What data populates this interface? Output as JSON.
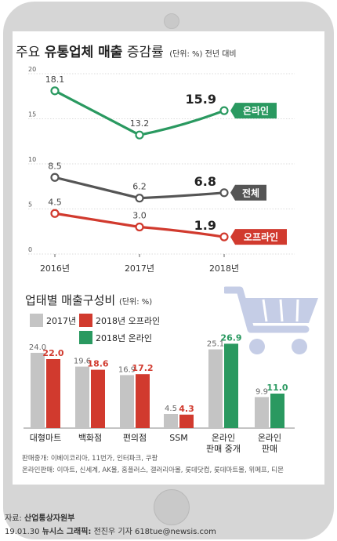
{
  "title": {
    "prefix": "주요",
    "bold": "유통업체 매출",
    "rest": "증감률",
    "unit": "(단위: %) 전년 대비"
  },
  "line_chart": {
    "type": "line",
    "x": [
      "2016년",
      "2017년",
      "2018년"
    ],
    "yticks": [
      0,
      5,
      10,
      15,
      20
    ],
    "ylim": [
      0,
      20
    ],
    "series": [
      {
        "name": "온라인",
        "values": [
          18.1,
          13.2,
          15.9
        ],
        "labels": [
          "18.1",
          "13.2",
          "15.9"
        ],
        "color": "#2a9960"
      },
      {
        "name": "전체",
        "values": [
          8.5,
          6.2,
          6.8
        ],
        "labels": [
          "8.5",
          "6.2",
          "6.8"
        ],
        "color": "#555555"
      },
      {
        "name": "오프라인",
        "values": [
          4.5,
          3.0,
          1.9
        ],
        "labels": [
          "4.5",
          "3.0",
          "1.9"
        ],
        "color": "#d13a2e"
      }
    ],
    "pct": "%"
  },
  "bar_title": {
    "main": "업태별 매출구성비",
    "unit": "(단위: %)"
  },
  "chart_data": {
    "type": "bar",
    "categories": [
      "대형마트",
      "백화점",
      "편의점",
      "SSM",
      "온라인 판매 중개",
      "온라인 판매"
    ],
    "category_lines": [
      [
        "대형마트"
      ],
      [
        "백화점"
      ],
      [
        "편의점"
      ],
      [
        "SSM"
      ],
      [
        "온라인",
        "판매 중개"
      ],
      [
        "온라인",
        "판매"
      ]
    ],
    "series": [
      {
        "name": "2017년",
        "values": [
          24.0,
          19.6,
          16.9,
          4.5,
          25.1,
          9.9
        ],
        "labels": [
          "24.0",
          "19.6",
          "16.9",
          "4.5",
          "25.1",
          "9.9"
        ],
        "color": "#c4c4c4"
      },
      {
        "name": "2018년 오프라인",
        "values": [
          22.0,
          18.6,
          17.2,
          4.3,
          null,
          null
        ],
        "labels": [
          "22.0",
          "18.6",
          "17.2",
          "4.3",
          null,
          null
        ],
        "color": "#d13a2e"
      },
      {
        "name": "2018년 온라인",
        "values": [
          null,
          null,
          null,
          null,
          26.9,
          11.0
        ],
        "labels": [
          null,
          null,
          null,
          null,
          "26.9",
          "11.0"
        ],
        "color": "#2a9960"
      }
    ]
  },
  "notes": {
    "line1": "판매중개: 이베이코리아, 11번가, 인터파크, 쿠팡",
    "line2": "온라인판매: 이마트, 신세계, AK몰, 홈플러스, 갤러리아몰, 롯데닷컴, 롯데마트몰, 위메프, 티몬"
  },
  "credit": {
    "source_label": "자료:",
    "source": "산업통상자원부",
    "date": "19.01.30",
    "brand": "뉴시스 그래픽:",
    "author": "전진우 기자 618tue@newsis.com"
  },
  "colors": {
    "green": "#2a9960",
    "red": "#d13a2e",
    "dark": "#555555",
    "gray": "#c4c4c4"
  },
  "icons": [
    "cart-icon"
  ]
}
